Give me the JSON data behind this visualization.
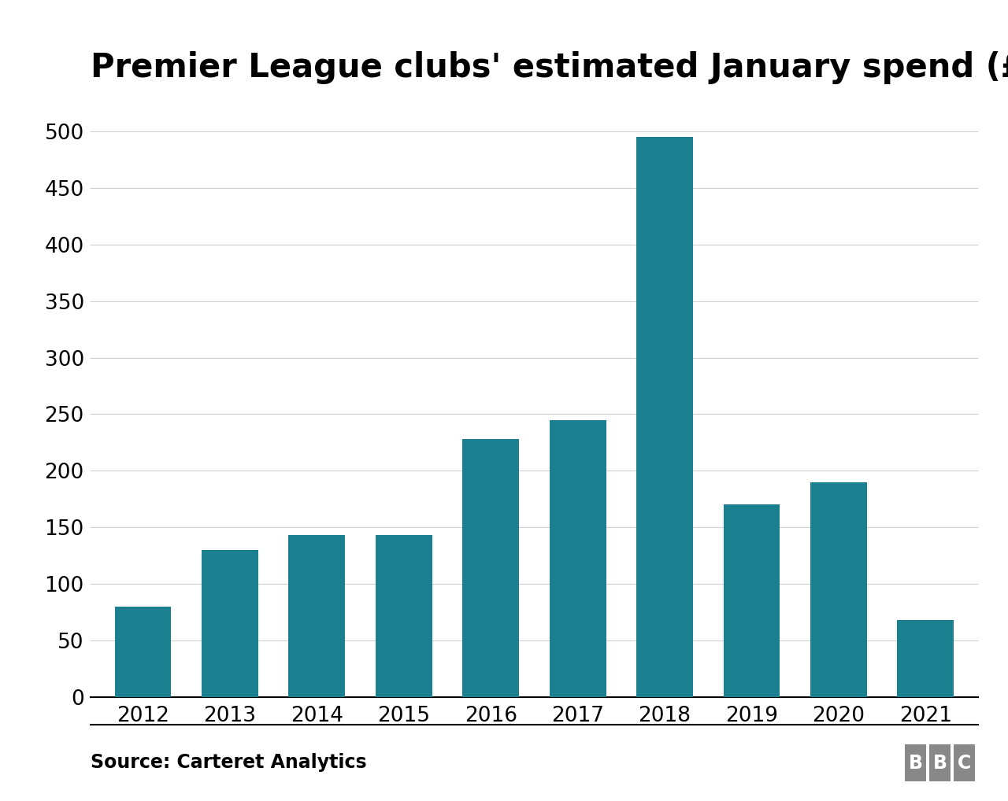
{
  "title": "Premier League clubs' estimated January spend (£m)",
  "categories": [
    "2012",
    "2013",
    "2014",
    "2015",
    "2016",
    "2017",
    "2018",
    "2019",
    "2020",
    "2021"
  ],
  "values": [
    80,
    130,
    143,
    143,
    228,
    245,
    495,
    170,
    190,
    68
  ],
  "bar_color": "#1a7f8e",
  "background_color": "#ffffff",
  "ylim": [
    0,
    510
  ],
  "yticks": [
    0,
    50,
    100,
    150,
    200,
    250,
    300,
    350,
    400,
    450,
    500
  ],
  "source_text": "Source: Carteret Analytics",
  "bbc_text": "BBC",
  "title_fontsize": 30,
  "tick_fontsize": 19,
  "source_fontsize": 17
}
